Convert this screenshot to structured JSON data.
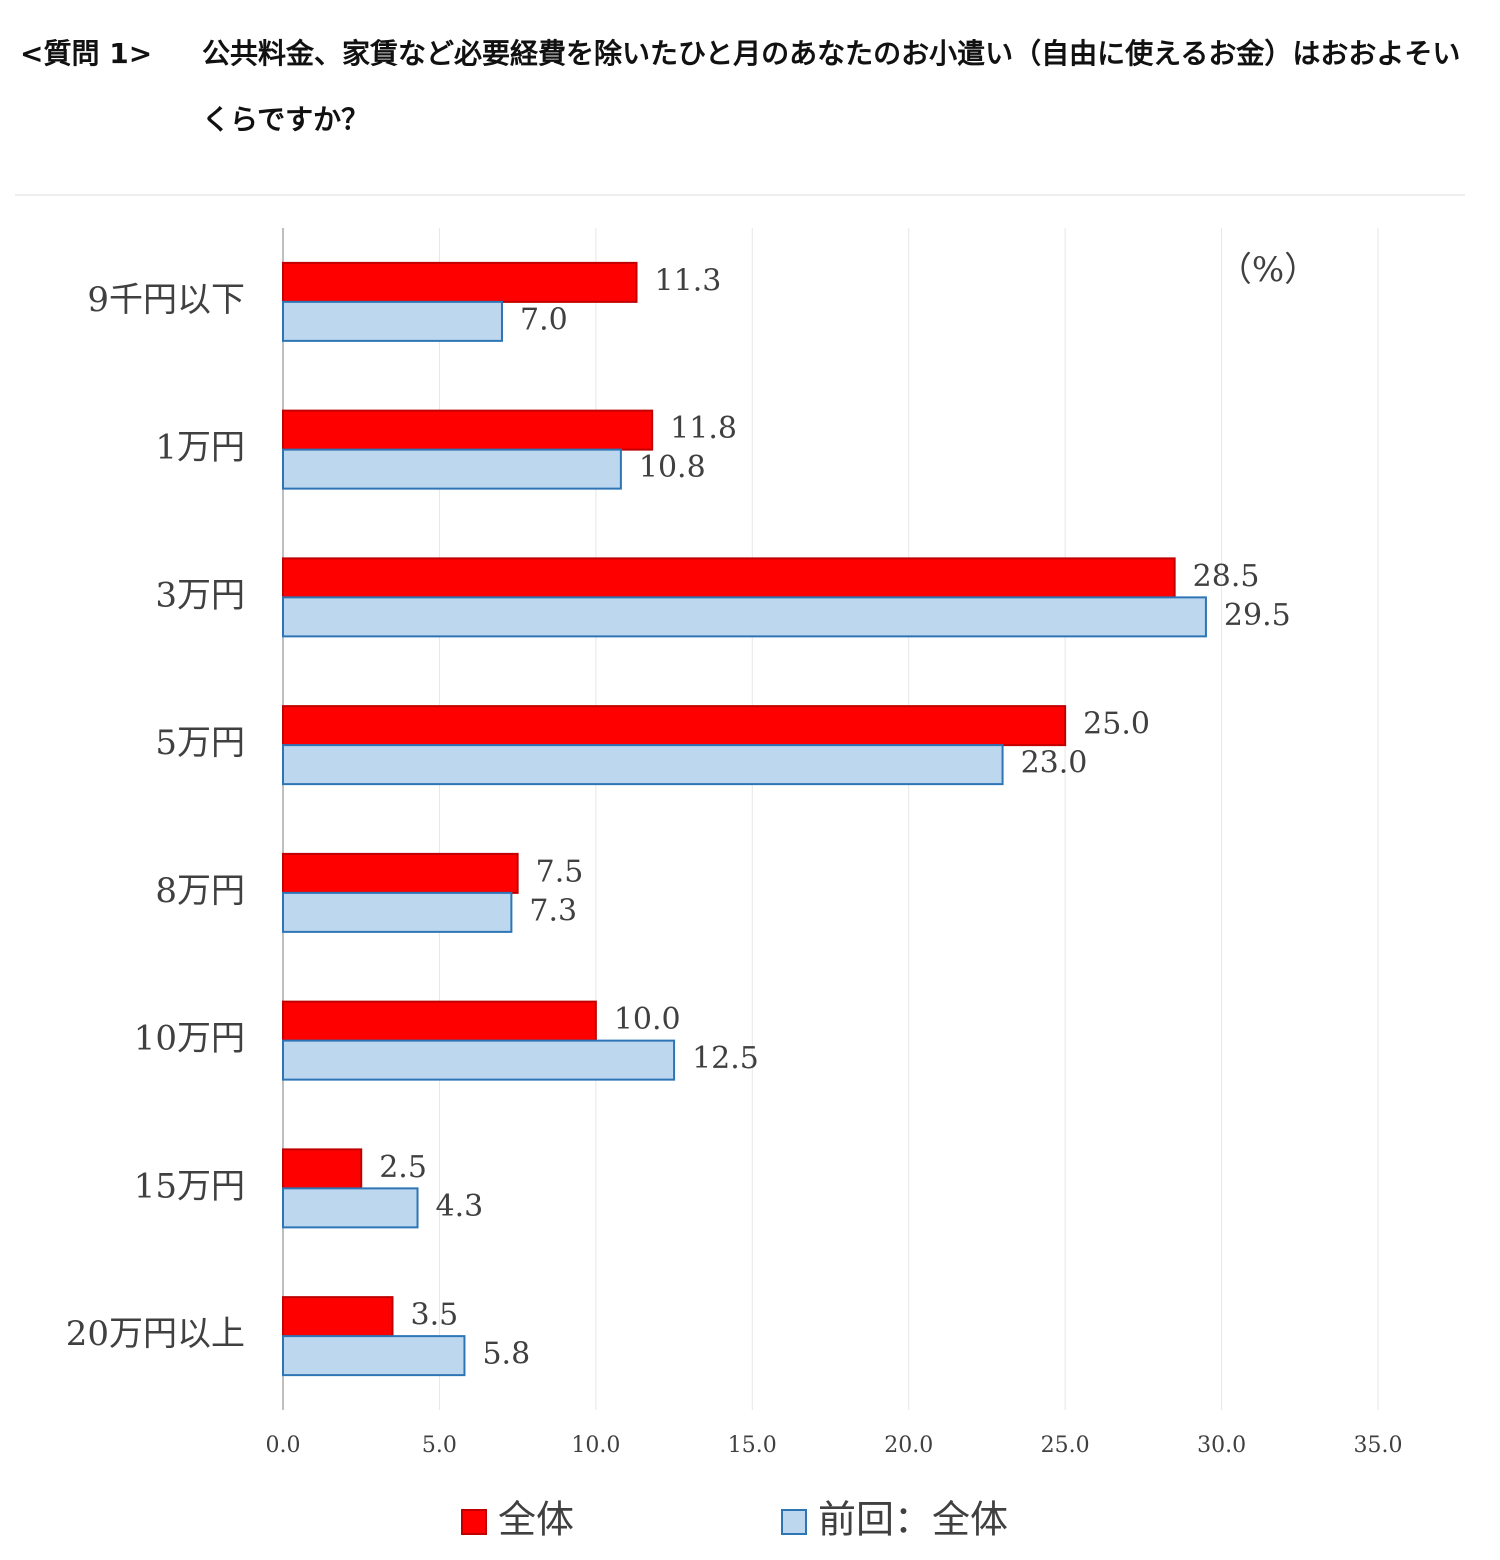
{
  "chart_data": {
    "type": "hbar",
    "question_label": "<質問 1>",
    "title": "公共料金、家賃など必要経費を除いたひと月のあなたのお小遣い（自由に使えるお金）はおおよそいくらですか？",
    "unit_label": "（%）",
    "categories": [
      "9千円以下",
      "1万円",
      "3万円",
      "5万円",
      "8万円",
      "10万円",
      "15万円",
      "20万円以上"
    ],
    "series": [
      {
        "name": "全体",
        "color": "#ff0000",
        "stroke": "#c00000",
        "values": [
          11.3,
          11.8,
          28.5,
          25.0,
          7.5,
          10.0,
          2.5,
          3.5
        ],
        "value_labels": [
          "11.3",
          "11.8",
          "28.5",
          "25.0",
          "7.5",
          "10.0",
          "2.5",
          "3.5"
        ]
      },
      {
        "name": "前回：全体",
        "color": "#bdd7ee",
        "stroke": "#2e75b6",
        "values": [
          7.0,
          10.8,
          29.5,
          23.0,
          7.3,
          12.5,
          4.3,
          5.8
        ],
        "value_labels": [
          "7.0",
          "10.8",
          "29.5",
          "23.0",
          "7.3",
          "12.5",
          "4.3",
          "5.8"
        ]
      }
    ],
    "xlim": [
      0,
      35
    ],
    "xticks": [
      {
        "value": 0,
        "label": "0.0"
      },
      {
        "value": 5,
        "label": "5.0"
      },
      {
        "value": 10,
        "label": "10.0"
      },
      {
        "value": 15,
        "label": "15.0"
      },
      {
        "value": 20,
        "label": "20.0"
      },
      {
        "value": 25,
        "label": "25.0"
      },
      {
        "value": 30,
        "label": "30.0"
      },
      {
        "value": 35,
        "label": "35.0"
      }
    ],
    "grid": true
  }
}
